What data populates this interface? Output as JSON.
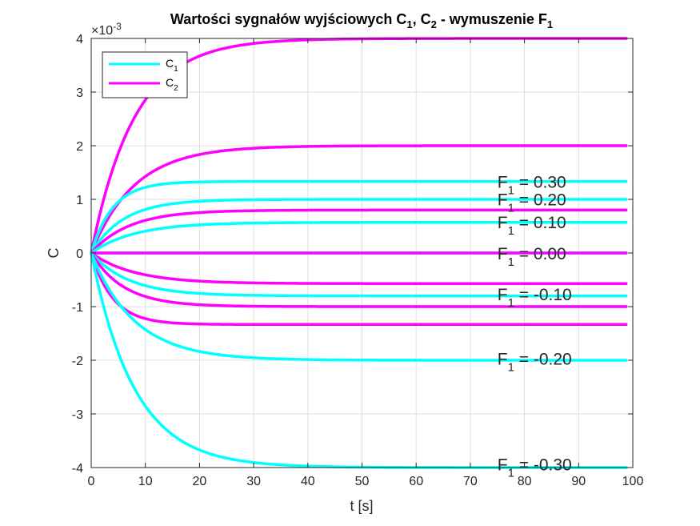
{
  "chart_data": {
    "type": "line",
    "title": {
      "main": "Wartości sygnałów wyjściowych C",
      "s1": "1",
      "sep": ", C",
      "s2": "2",
      "mid": " - wymuszenie F",
      "s3": "1"
    },
    "xlabel": "t [s]",
    "ylabel": "C",
    "exponent_label": "×10",
    "exponent_power": "-3",
    "xlim": [
      0,
      100
    ],
    "ylim": [
      -4,
      4
    ],
    "xticks": [
      0,
      10,
      20,
      30,
      40,
      50,
      60,
      70,
      80,
      90,
      100
    ],
    "yticks": [
      -4,
      -3,
      -2,
      -1,
      0,
      1,
      2,
      3,
      4
    ],
    "grid": true,
    "legend_position": "top-left",
    "legend": [
      {
        "base": "C",
        "sub": "1",
        "color": "#00ffff"
      },
      {
        "base": "C",
        "sub": "2",
        "color": "#ff00ff"
      }
    ],
    "model": "y(t) = final * (1 - exp(-t / tau))",
    "t_end": 99,
    "series": [
      {
        "color": "#ff00ff",
        "final": 4.0,
        "tau": 8.0
      },
      {
        "color": "#ff00ff",
        "final": 2.0,
        "tau": 8.0
      },
      {
        "color": "#00ffff",
        "final": 1.333,
        "tau": 4.0
      },
      {
        "color": "#00ffff",
        "final": 1.0,
        "tau": 6.0
      },
      {
        "color": "#ff00ff",
        "final": 0.8,
        "tau": 7.0
      },
      {
        "color": "#00ffff",
        "final": 0.571,
        "tau": 8.0
      },
      {
        "color": "#00ffff",
        "final": 0.0,
        "tau": 6.0
      },
      {
        "color": "#ff00ff",
        "final": 0.0,
        "tau": 6.0
      },
      {
        "color": "#ff00ff",
        "final": -0.571,
        "tau": 8.0
      },
      {
        "color": "#00ffff",
        "final": -0.8,
        "tau": 7.0
      },
      {
        "color": "#ff00ff",
        "final": -1.0,
        "tau": 6.0
      },
      {
        "color": "#ff00ff",
        "final": -1.333,
        "tau": 4.0
      },
      {
        "color": "#00ffff",
        "final": -2.0,
        "tau": 8.0
      },
      {
        "color": "#00ffff",
        "final": -4.0,
        "tau": 8.0
      }
    ],
    "annotations": [
      {
        "base": "F",
        "sub": "1",
        "text": " = 0.30",
        "x": 75,
        "y": 1.22
      },
      {
        "base": "F",
        "sub": "1",
        "text": " = 0.20",
        "x": 75,
        "y": 0.89
      },
      {
        "base": "F",
        "sub": "1",
        "text": " = 0.10",
        "x": 75,
        "y": 0.46
      },
      {
        "base": "F",
        "sub": "1",
        "text": " = 0.00",
        "x": 75,
        "y": -0.12
      },
      {
        "base": "F",
        "sub": "1",
        "text": " = -0.10",
        "x": 75,
        "y": -0.88
      },
      {
        "base": "F",
        "sub": "1",
        "text": " = -0.20",
        "x": 75,
        "y": -2.08
      },
      {
        "base": "F",
        "sub": "1",
        "text": " = -0.30",
        "x": 75,
        "y": -4.05
      }
    ]
  }
}
